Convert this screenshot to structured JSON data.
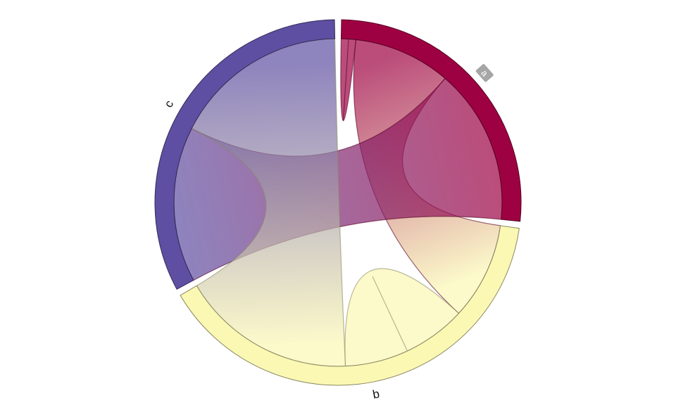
{
  "chart_data": {
    "type": "chord",
    "groups": [
      {
        "name": "a",
        "color": "#9e0142",
        "label_style": "boxed"
      },
      {
        "name": "b",
        "color": "#fbf8b4",
        "label_style": "plain"
      },
      {
        "name": "c",
        "color": "#5e4fa2",
        "label_style": "plain"
      }
    ],
    "matrix": [
      [
        0.15,
        1,
        1.6
      ],
      [
        1,
        1.3,
        1.8
      ],
      [
        1.6,
        1.8,
        0
      ]
    ],
    "title": "",
    "legend": "none"
  }
}
